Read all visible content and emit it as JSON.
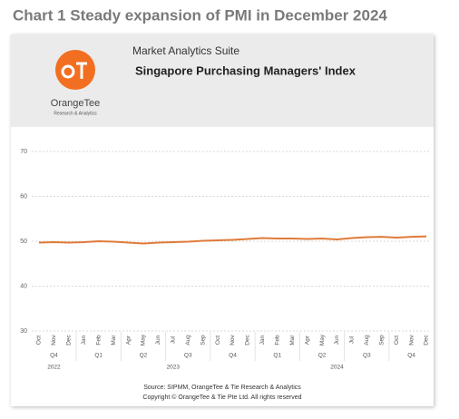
{
  "page_title": "Chart 1 Steady expansion of PMI in December 2024",
  "header": {
    "logo_name": "OrangeTee",
    "logo_tagline": "Research & Analytics",
    "suite": "Market Analytics Suite",
    "title": "Singapore Purchasing Managers' Index"
  },
  "chart_data": {
    "type": "line",
    "categories": [
      "Oct",
      "Nov",
      "Dec",
      "Jan",
      "Feb",
      "Mar",
      "Apr",
      "May",
      "Jun",
      "Jul",
      "Aug",
      "Sep",
      "Oct",
      "Nov",
      "Dec",
      "Jan",
      "Feb",
      "Mar",
      "Apr",
      "May",
      "Jun",
      "Jul",
      "Aug",
      "Sep",
      "Oct",
      "Nov",
      "Dec"
    ],
    "quarters": [
      null,
      "Q4",
      null,
      null,
      "Q1",
      null,
      null,
      "Q2",
      null,
      null,
      "Q3",
      null,
      null,
      "Q4",
      null,
      null,
      "Q1",
      null,
      null,
      "Q2",
      null,
      null,
      "Q3",
      null,
      null,
      "Q4",
      null
    ],
    "years": [
      null,
      "2022",
      null,
      null,
      null,
      null,
      null,
      null,
      null,
      "2023",
      null,
      null,
      null,
      null,
      null,
      null,
      null,
      null,
      null,
      null,
      "2024",
      null,
      null,
      null,
      null,
      null,
      null
    ],
    "values": [
      49.7,
      49.8,
      49.7,
      49.8,
      50.0,
      49.9,
      49.7,
      49.5,
      49.7,
      49.8,
      49.9,
      50.1,
      50.2,
      50.3,
      50.5,
      50.7,
      50.6,
      50.6,
      50.5,
      50.6,
      50.4,
      50.7,
      50.9,
      51.0,
      50.8,
      51.0,
      51.1
    ],
    "color": "#e07a3a",
    "ylim": [
      30,
      70
    ],
    "yticks": [
      30,
      40,
      50,
      60,
      70
    ],
    "grid": true
  },
  "footer": {
    "source": "Source: SIPMM, OrangeTee & Tie Research & Analytics",
    "copyright": "Copyright © OrangeTee & Tie Pte Ltd. All rights reserved"
  }
}
